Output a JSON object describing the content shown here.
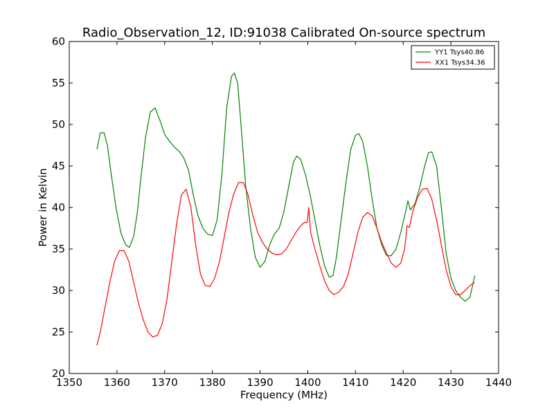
{
  "chart_data": {
    "type": "line",
    "title": "Radio_Observation_12, ID:91038 Calibrated On-source spectrum",
    "xlabel": "Frequency (MHz)",
    "ylabel": "Power in Kelvin",
    "xlim": [
      1350,
      1440
    ],
    "ylim": [
      20,
      60
    ],
    "xticks": [
      1350,
      1360,
      1370,
      1380,
      1390,
      1400,
      1410,
      1420,
      1430,
      1440
    ],
    "yticks": [
      20,
      25,
      30,
      35,
      40,
      45,
      50,
      55,
      60
    ],
    "grid": false,
    "legend_position": "top-right",
    "series": [
      {
        "name": "YY1 Tsys40.86",
        "color": "#008000",
        "x": [
          1355.8,
          1356.5,
          1357.3,
          1358.0,
          1358.8,
          1359.8,
          1360.8,
          1361.8,
          1362.6,
          1363.5,
          1364.3,
          1365.0,
          1366.0,
          1367.0,
          1368.0,
          1369.0,
          1370.0,
          1371.0,
          1372.0,
          1373.0,
          1374.0,
          1375.0,
          1376.0,
          1377.0,
          1378.0,
          1379.0,
          1380.0,
          1381.0,
          1382.0,
          1383.0,
          1384.0,
          1384.6,
          1385.3,
          1386.0,
          1387.0,
          1388.0,
          1389.0,
          1390.0,
          1391.0,
          1392.0,
          1393.0,
          1394.0,
          1395.0,
          1396.0,
          1397.0,
          1397.7,
          1398.5,
          1399.5,
          1400.5,
          1401.5,
          1402.5,
          1403.5,
          1404.5,
          1405.3,
          1406.0,
          1407.0,
          1408.0,
          1409.0,
          1410.0,
          1410.7,
          1411.5,
          1412.5,
          1413.5,
          1414.5,
          1415.5,
          1416.5,
          1417.5,
          1418.5,
          1419.5,
          1420.5,
          1421.0,
          1421.5,
          1422.5,
          1423.5,
          1424.5,
          1425.3,
          1426.0,
          1427.0,
          1428.0,
          1429.0,
          1430.0,
          1431.0,
          1432.0,
          1433.0,
          1434.0,
          1435.0
        ],
        "y": [
          47.0,
          49.0,
          49.0,
          47.5,
          44.0,
          40.0,
          37.0,
          35.5,
          35.2,
          36.5,
          39.5,
          43.5,
          48.5,
          51.5,
          52.0,
          50.5,
          48.8,
          48.0,
          47.3,
          46.8,
          46.0,
          44.5,
          41.5,
          39.0,
          37.5,
          36.8,
          36.6,
          38.5,
          44.0,
          52.0,
          55.8,
          56.2,
          55.0,
          50.0,
          42.5,
          37.5,
          34.0,
          32.8,
          33.5,
          35.5,
          36.8,
          37.5,
          39.5,
          42.5,
          45.5,
          46.2,
          45.8,
          44.0,
          41.5,
          38.5,
          35.5,
          33.0,
          31.6,
          31.8,
          34.0,
          38.5,
          43.0,
          47.0,
          48.7,
          48.9,
          48.0,
          45.0,
          41.0,
          37.5,
          35.5,
          34.2,
          34.2,
          35.0,
          37.0,
          39.5,
          40.8,
          39.7,
          40.5,
          42.5,
          45.0,
          46.6,
          46.7,
          45.0,
          40.0,
          34.5,
          31.5,
          30.0,
          29.2,
          28.7,
          29.2,
          31.8
        ]
      },
      {
        "name": "XX1 Tsys34.36",
        "color": "#ff0000",
        "x": [
          1355.8,
          1356.5,
          1357.5,
          1358.5,
          1359.5,
          1360.5,
          1361.5,
          1362.5,
          1363.5,
          1364.5,
          1365.5,
          1366.5,
          1367.5,
          1368.5,
          1369.5,
          1370.5,
          1371.5,
          1372.5,
          1373.5,
          1374.5,
          1375.5,
          1376.5,
          1377.5,
          1378.5,
          1379.5,
          1380.5,
          1381.5,
          1382.5,
          1383.5,
          1384.5,
          1385.5,
          1386.5,
          1387.5,
          1388.5,
          1389.5,
          1390.5,
          1391.5,
          1392.5,
          1393.5,
          1394.5,
          1395.5,
          1396.5,
          1397.5,
          1398.5,
          1399.3,
          1399.9,
          1400.2,
          1400.6,
          1401.5,
          1402.5,
          1403.5,
          1404.5,
          1405.5,
          1406.5,
          1407.5,
          1408.5,
          1409.5,
          1410.5,
          1411.5,
          1412.5,
          1413.5,
          1414.5,
          1415.5,
          1416.5,
          1417.5,
          1418.5,
          1419.5,
          1420.3,
          1420.8,
          1421.3,
          1422.0,
          1423.0,
          1424.0,
          1425.0,
          1426.0,
          1427.0,
          1428.0,
          1429.0,
          1430.0,
          1431.0,
          1432.0,
          1433.0,
          1434.0,
          1435.0
        ],
        "y": [
          23.4,
          25.0,
          28.0,
          31.0,
          33.5,
          34.8,
          34.8,
          33.5,
          31.0,
          28.5,
          26.5,
          25.0,
          24.4,
          24.6,
          26.0,
          29.0,
          33.5,
          38.0,
          41.5,
          42.2,
          40.0,
          35.5,
          32.0,
          30.6,
          30.5,
          31.5,
          33.5,
          36.5,
          39.5,
          41.7,
          43.0,
          43.0,
          41.5,
          39.0,
          37.0,
          35.8,
          35.0,
          34.5,
          34.3,
          34.4,
          35.0,
          36.0,
          37.0,
          37.8,
          38.2,
          38.2,
          40.0,
          37.0,
          35.0,
          33.0,
          31.2,
          30.0,
          29.5,
          29.8,
          30.5,
          32.0,
          34.5,
          37.0,
          38.8,
          39.4,
          39.0,
          37.5,
          35.8,
          34.5,
          33.3,
          32.8,
          33.3,
          35.0,
          37.8,
          37.6,
          39.5,
          41.2,
          42.2,
          42.3,
          41.0,
          38.5,
          35.5,
          32.5,
          30.5,
          29.5,
          29.5,
          30.0,
          30.6,
          31.0
        ]
      }
    ]
  }
}
